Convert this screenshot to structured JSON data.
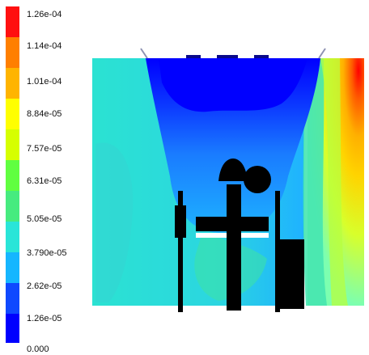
{
  "legend": {
    "labels": [
      "1.26e-04",
      "1.14e-04",
      "1.01e-04",
      "8.84e-05",
      "7.57e-05",
      "6.31e-05",
      "5.05e-05",
      "3.790e-05",
      "2.62e-05",
      "1.26e-05",
      "0.000"
    ],
    "colors": [
      "#ff0000",
      "#ff7e00",
      "#ffb800",
      "#ffff00",
      "#d4ff21",
      "#6cff37",
      "#42e682",
      "#27e7e0",
      "#15b6ff",
      "#0a3cff",
      "#0000ff"
    ]
  }
}
